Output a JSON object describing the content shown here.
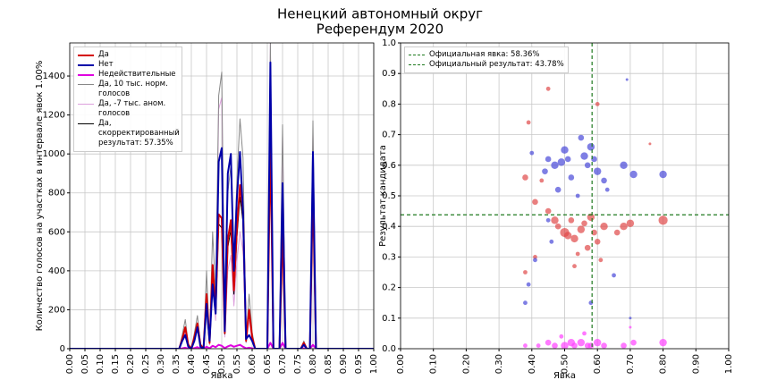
{
  "header": {
    "title": "Ненецкий автономный округ",
    "subtitle": "Референдум 2020"
  },
  "chart_data": [
    {
      "type": "line",
      "xlabel": "Явка",
      "ylabel": "Количество голосов на участках в интервале явок 1.00%",
      "x": [
        0,
        0.36,
        0.37,
        0.38,
        0.39,
        0.4,
        0.41,
        0.42,
        0.43,
        0.44,
        0.45,
        0.46,
        0.47,
        0.48,
        0.49,
        0.5,
        0.51,
        0.52,
        0.53,
        0.54,
        0.55,
        0.56,
        0.57,
        0.58,
        0.59,
        0.6,
        0.61,
        0.62,
        0.63,
        0.64,
        0.65,
        0.66,
        0.67,
        0.68,
        0.69,
        0.7,
        0.71,
        0.72,
        0.73,
        0.74,
        0.75,
        0.76,
        0.77,
        0.78,
        0.79,
        0.8,
        0.81,
        0.82,
        1.0
      ],
      "xlim": [
        0,
        1
      ],
      "ylim": [
        0,
        1570
      ],
      "xticks": [
        {
          "value": 0,
          "label": "0.00"
        },
        0.05,
        {
          "value": 0.1,
          "label": "0.10"
        },
        0.15,
        {
          "value": 0.2,
          "label": "0.20"
        },
        0.25,
        {
          "value": 0.3,
          "label": "0.30"
        },
        0.35,
        {
          "value": 0.4,
          "label": "0.40"
        },
        0.45,
        {
          "value": 0.5,
          "label": "0.50"
        },
        0.55,
        {
          "value": 0.6,
          "label": "0.60"
        },
        0.65,
        {
          "value": 0.7,
          "label": "0.70"
        },
        0.75,
        {
          "value": 0.8,
          "label": "0.80"
        },
        0.85,
        {
          "value": 0.9,
          "label": "0.90"
        },
        0.95,
        {
          "value": 1,
          "label": "1.00"
        }
      ],
      "yticks": [
        0,
        200,
        400,
        600,
        800,
        1000,
        1200,
        1400
      ],
      "grid": true,
      "legend": "upper left",
      "series": [
        {
          "name": "Да",
          "color": "#d40000",
          "width": 2,
          "values": [
            0,
            0,
            50,
            110,
            20,
            0,
            60,
            130,
            20,
            0,
            280,
            30,
            430,
            200,
            690,
            670,
            80,
            560,
            660,
            300,
            620,
            840,
            700,
            40,
            200,
            60,
            0,
            0,
            0,
            0,
            0,
            1070,
            0,
            0,
            0,
            620,
            0,
            0,
            0,
            0,
            0,
            0,
            30,
            0,
            0,
            830,
            0,
            0,
            0
          ]
        },
        {
          "name": "Нет",
          "color": "#0000a8",
          "width": 2,
          "values": [
            0,
            0,
            40,
            70,
            10,
            0,
            40,
            110,
            10,
            0,
            230,
            40,
            330,
            180,
            960,
            1030,
            90,
            900,
            1000,
            400,
            780,
            1010,
            700,
            50,
            70,
            40,
            0,
            0,
            0,
            0,
            0,
            1470,
            0,
            0,
            0,
            850,
            0,
            0,
            0,
            0,
            0,
            0,
            20,
            0,
            0,
            1010,
            0,
            0,
            0
          ]
        },
        {
          "name": "Недействительные",
          "color": "#e000e0",
          "width": 2,
          "values": [
            0,
            0,
            2,
            5,
            0,
            0,
            3,
            8,
            0,
            0,
            10,
            2,
            15,
            8,
            20,
            15,
            3,
            12,
            18,
            10,
            15,
            20,
            10,
            2,
            5,
            2,
            0,
            0,
            0,
            0,
            0,
            30,
            0,
            0,
            0,
            30,
            0,
            0,
            0,
            0,
            0,
            0,
            2,
            0,
            0,
            20,
            0,
            0,
            0
          ]
        },
        {
          "name": "Да, 10 тыс. норм. голосов",
          "color": "#888888",
          "width": 1,
          "values": [
            0,
            0,
            70,
            150,
            25,
            0,
            80,
            170,
            25,
            0,
            400,
            40,
            600,
            280,
            1300,
            1420,
            110,
            800,
            940,
            420,
            870,
            1180,
            980,
            55,
            280,
            85,
            0,
            0,
            0,
            0,
            0,
            1570,
            0,
            0,
            0,
            1150,
            0,
            0,
            0,
            0,
            0,
            0,
            40,
            0,
            0,
            1170,
            0,
            0,
            0
          ]
        },
        {
          "name": "Да, -7 тыс. аном. голосов",
          "color": "#dda0dd",
          "width": 1,
          "values": [
            0,
            0,
            40,
            80,
            15,
            0,
            45,
            95,
            15,
            0,
            200,
            20,
            310,
            145,
            1230,
            1290,
            60,
            400,
            480,
            220,
            450,
            600,
            500,
            30,
            145,
            45,
            0,
            0,
            0,
            0,
            0,
            1570,
            0,
            0,
            0,
            1100,
            0,
            0,
            0,
            0,
            0,
            0,
            25,
            0,
            0,
            1100,
            0,
            0,
            0
          ]
        },
        {
          "name": "Да, скорректированный результат: 57.35%",
          "color": "#000000",
          "width": 1,
          "values": [
            0,
            0,
            45,
            100,
            18,
            0,
            55,
            120,
            18,
            0,
            260,
            28,
            400,
            185,
            640,
            620,
            75,
            520,
            610,
            280,
            575,
            780,
            650,
            37,
            185,
            55,
            0,
            0,
            0,
            0,
            0,
            990,
            0,
            0,
            0,
            575,
            0,
            0,
            0,
            0,
            0,
            0,
            28,
            0,
            0,
            770,
            0,
            0,
            0
          ]
        }
      ]
    },
    {
      "type": "scatter",
      "xlabel": "Явка",
      "ylabel": "Результат кандидата",
      "xlim": [
        0,
        1
      ],
      "ylim": [
        0,
        1
      ],
      "xticks": [
        {
          "value": 0,
          "label": "0.00"
        },
        {
          "value": 0.1,
          "label": "0.10"
        },
        {
          "value": 0.2,
          "label": "0.20"
        },
        {
          "value": 0.3,
          "label": "0.30"
        },
        {
          "value": 0.4,
          "label": "0.40"
        },
        {
          "value": 0.5,
          "label": "0.50"
        },
        {
          "value": 0.6,
          "label": "0.60"
        },
        {
          "value": 0.7,
          "label": "0.70"
        },
        {
          "value": 0.8,
          "label": "0.80"
        },
        {
          "value": 0.9,
          "label": "0.90"
        },
        {
          "value": 1,
          "label": "1.00"
        }
      ],
      "yticks": [
        {
          "value": 0,
          "label": "0.0"
        },
        0.1,
        0.2,
        0.3,
        0.4,
        0.5,
        0.6,
        0.7,
        0.8,
        0.9,
        {
          "value": 1,
          "label": "1.0"
        }
      ],
      "grid": true,
      "legend": "upper left",
      "reference_lines": [
        {
          "orientation": "vertical",
          "value": 0.5836,
          "label": "Официальная явка: 58.36%",
          "color": "#1f7a1f"
        },
        {
          "orientation": "horizontal",
          "value": 0.4378,
          "label": "Официальный результат: 43.78%",
          "color": "#1f7a1f"
        }
      ],
      "series": [
        {
          "color": "#e04848",
          "x": [
            0.45,
            0.39,
            0.38,
            0.43,
            0.41,
            0.45,
            0.47,
            0.48,
            0.5,
            0.51,
            0.52,
            0.53,
            0.55,
            0.56,
            0.58,
            0.59,
            0.6,
            0.62,
            0.68,
            0.7,
            0.8,
            0.57,
            0.54,
            0.6,
            0.66,
            0.38,
            0.41,
            0.53,
            0.61,
            0.76
          ],
          "values": [
            0.85,
            0.74,
            0.56,
            0.55,
            0.48,
            0.45,
            0.42,
            0.4,
            0.38,
            0.37,
            0.42,
            0.36,
            0.39,
            0.41,
            0.43,
            0.38,
            0.35,
            0.4,
            0.4,
            0.41,
            0.42,
            0.33,
            0.31,
            0.8,
            0.38,
            0.25,
            0.3,
            0.27,
            0.29,
            0.67
          ],
          "sizes": [
            2,
            2,
            3,
            2,
            3,
            3,
            4,
            3,
            5,
            4,
            3,
            4,
            4,
            3,
            4,
            3,
            3,
            4,
            4,
            4,
            5,
            3,
            2,
            2,
            3,
            2,
            2,
            2,
            2,
            1
          ]
        },
        {
          "color": "#4848d8",
          "x": [
            0.4,
            0.44,
            0.45,
            0.47,
            0.49,
            0.5,
            0.51,
            0.52,
            0.55,
            0.56,
            0.57,
            0.58,
            0.59,
            0.6,
            0.62,
            0.68,
            0.71,
            0.8,
            0.45,
            0.41,
            0.48,
            0.54,
            0.63,
            0.65,
            0.69,
            0.39,
            0.46,
            0.7,
            0.58,
            0.38
          ],
          "values": [
            0.64,
            0.58,
            0.62,
            0.6,
            0.61,
            0.65,
            0.62,
            0.56,
            0.69,
            0.63,
            0.6,
            0.66,
            0.62,
            0.58,
            0.55,
            0.6,
            0.57,
            0.57,
            0.42,
            0.29,
            0.52,
            0.5,
            0.52,
            0.24,
            0.88,
            0.21,
            0.35,
            0.1,
            0.15,
            0.15
          ],
          "sizes": [
            2,
            3,
            3,
            4,
            4,
            4,
            3,
            3,
            3,
            4,
            3,
            4,
            3,
            4,
            3,
            4,
            4,
            4,
            2,
            2,
            3,
            2,
            2,
            2,
            1,
            2,
            2,
            1,
            2,
            2
          ]
        },
        {
          "color": "#ff40ff",
          "x": [
            0.38,
            0.42,
            0.45,
            0.47,
            0.5,
            0.52,
            0.53,
            0.55,
            0.57,
            0.58,
            0.6,
            0.62,
            0.68,
            0.71,
            0.8,
            0.49,
            0.56,
            0.7
          ],
          "values": [
            0.01,
            0.01,
            0.02,
            0.01,
            0.01,
            0.02,
            0.01,
            0.02,
            0.01,
            0.01,
            0.02,
            0.01,
            0.01,
            0.02,
            0.02,
            0.04,
            0.05,
            0.07
          ],
          "sizes": [
            2,
            2,
            3,
            3,
            4,
            4,
            3,
            4,
            3,
            3,
            4,
            3,
            3,
            3,
            4,
            2,
            2,
            1
          ]
        }
      ]
    }
  ]
}
